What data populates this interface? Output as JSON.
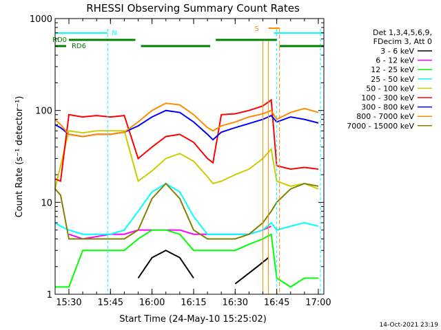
{
  "chart_data": {
    "type": "line",
    "title": "RHESSI Observing Summary Count Rates",
    "xlabel": "Start Time (24-May-10 15:25:02)",
    "ylabel": "Count Rate (s⁻¹ detector⁻¹)",
    "y_scale": "log",
    "ylim": [
      1,
      1000
    ],
    "xlim": [
      "15:25:02",
      "17:02:00"
    ],
    "x_ticks": [
      "15:30",
      "15:45",
      "16:00",
      "16:15",
      "16:30",
      "16:45",
      "17:00"
    ],
    "y_ticks": [
      "1",
      "10",
      "100",
      "1000"
    ],
    "footer": "14-Oct-2021 23:19",
    "legend_header": [
      "Det 1,3,4,5,6,9,",
      "FDecim 3, Att 0"
    ],
    "legend_position": "right",
    "series": [
      {
        "name": "3 - 6 keV",
        "color": "#000000",
        "x": [
          "15:25",
          "15:35",
          "15:45",
          "15:55",
          "16:00",
          "16:05",
          "16:10",
          "16:15",
          "16:22",
          "16:30",
          "16:38",
          "16:42",
          "16:45",
          "16:50",
          "16:55",
          "17:00"
        ],
        "y": [
          null,
          null,
          null,
          1.5,
          2.5,
          3,
          2.5,
          1.5,
          null,
          1.3,
          2,
          2.5,
          null,
          null,
          null,
          null
        ]
      },
      {
        "name": "6 - 12 keV",
        "color": "#ff00ff",
        "x": [
          "15:25",
          "15:30",
          "15:35",
          "15:45",
          "15:50",
          "15:55",
          "16:00",
          "16:05",
          "16:10",
          "16:15",
          "16:20",
          "16:25",
          "16:30",
          "16:35",
          "16:40",
          "16:43",
          "16:45",
          "16:50",
          "16:55",
          "17:00"
        ],
        "y": [
          null,
          4.5,
          4,
          4.5,
          4.5,
          5,
          5,
          5,
          5,
          4.5,
          4.5,
          4.5,
          4.5,
          4.5,
          5,
          5.5,
          null,
          null,
          null,
          null
        ]
      },
      {
        "name": "12 - 25 keV",
        "color": "#00ff00",
        "x": [
          "15:25",
          "15:30",
          "15:35",
          "15:45",
          "15:50",
          "15:55",
          "16:00",
          "16:05",
          "16:10",
          "16:15",
          "16:20",
          "16:25",
          "16:30",
          "16:35",
          "16:40",
          "16:43",
          "16:45",
          "16:50",
          "16:55",
          "17:00"
        ],
        "y": [
          1.2,
          1.2,
          3,
          3,
          3,
          4,
          5,
          5,
          4.5,
          3,
          3,
          3,
          3,
          3.5,
          4,
          4.5,
          1.5,
          1.2,
          1.5,
          1.5
        ]
      },
      {
        "name": "25 - 50 keV",
        "color": "#00ffff",
        "x": [
          "15:25",
          "15:27",
          "15:30",
          "15:35",
          "15:40",
          "15:45",
          "15:50",
          "15:55",
          "16:00",
          "16:05",
          "16:10",
          "16:15",
          "16:20",
          "16:25",
          "16:30",
          "16:35",
          "16:40",
          "16:43",
          "16:45",
          "16:50",
          "16:55",
          "17:00"
        ],
        "y": [
          6,
          5.5,
          5,
          4.5,
          4.5,
          4.5,
          5,
          8,
          13,
          16,
          13,
          7,
          4.5,
          4.5,
          4.5,
          4.5,
          5,
          6,
          5,
          5.5,
          6,
          5.5
        ]
      },
      {
        "name": "50 - 100 keV",
        "color": "#cccc00",
        "x": [
          "15:25",
          "15:30",
          "15:35",
          "15:40",
          "15:45",
          "15:50",
          "15:55",
          "16:00",
          "16:05",
          "16:10",
          "16:15",
          "16:20",
          "16:22",
          "16:25",
          "16:30",
          "16:35",
          "16:40",
          "16:43",
          "16:45",
          "16:50",
          "16:55",
          "17:00"
        ],
        "y": [
          14,
          60,
          57,
          60,
          60,
          60,
          17,
          22,
          30,
          34,
          28,
          19,
          16,
          17,
          20,
          23,
          30,
          38,
          17,
          15,
          16,
          14
        ]
      },
      {
        "name": "100 - 300 keV",
        "color": "#ff0000",
        "x": [
          "15:25",
          "15:27",
          "15:30",
          "15:35",
          "15:40",
          "15:45",
          "15:50",
          "15:55",
          "16:00",
          "16:05",
          "16:10",
          "16:15",
          "16:20",
          "16:22",
          "16:25",
          "16:30",
          "16:35",
          "16:40",
          "16:43",
          "16:45",
          "16:50",
          "16:55",
          "17:00"
        ],
        "y": [
          18,
          17,
          90,
          85,
          88,
          85,
          88,
          30,
          40,
          52,
          55,
          45,
          30,
          27,
          90,
          92,
          100,
          112,
          130,
          25,
          23,
          24,
          23
        ]
      },
      {
        "name": "300 - 800 keV",
        "color": "#0000ff",
        "x": [
          "15:25",
          "15:27",
          "15:30",
          "15:35",
          "15:40",
          "15:45",
          "15:50",
          "15:55",
          "16:00",
          "16:05",
          "16:10",
          "16:15",
          "16:20",
          "16:22",
          "16:25",
          "16:30",
          "16:35",
          "16:40",
          "16:43",
          "16:45",
          "16:50",
          "16:55",
          "17:00"
        ],
        "y": [
          70,
          65,
          55,
          52,
          55,
          55,
          58,
          68,
          85,
          100,
          95,
          75,
          55,
          48,
          58,
          65,
          72,
          80,
          88,
          75,
          85,
          80,
          73
        ]
      },
      {
        "name": "800 - 7000 keV",
        "color": "#ff8c00",
        "x": [
          "15:25",
          "15:27",
          "15:30",
          "15:35",
          "15:40",
          "15:45",
          "15:50",
          "15:55",
          "16:00",
          "16:05",
          "16:10",
          "16:15",
          "16:20",
          "16:22",
          "16:25",
          "16:30",
          "16:35",
          "16:40",
          "16:43",
          "16:45",
          "16:50",
          "16:55",
          "17:00"
        ],
        "y": [
          80,
          70,
          55,
          52,
          55,
          55,
          58,
          75,
          100,
          120,
          115,
          90,
          65,
          60,
          68,
          75,
          85,
          92,
          100,
          80,
          95,
          105,
          95
        ]
      },
      {
        "name": "7000 - 15000 keV",
        "color": "#808000",
        "x": [
          "15:25",
          "15:27",
          "15:30",
          "15:35",
          "15:40",
          "15:45",
          "15:50",
          "15:55",
          "16:00",
          "16:05",
          "16:10",
          "16:15",
          "16:20",
          "16:25",
          "16:30",
          "16:35",
          "16:40",
          "16:43",
          "16:45",
          "16:50",
          "16:55",
          "17:00"
        ],
        "y": [
          14,
          12,
          4,
          4,
          4,
          4,
          4,
          5,
          11,
          16,
          11,
          5,
          4,
          4,
          4,
          4.5,
          6,
          8,
          10,
          14,
          16,
          15
        ]
      }
    ],
    "markers": [
      {
        "label": "N",
        "color": "#00ffff"
      },
      {
        "label": "S",
        "color": "#ff8c00"
      },
      {
        "label": "RD0",
        "color": "#008000"
      },
      {
        "label": "RD6",
        "color": "#008000"
      }
    ]
  }
}
